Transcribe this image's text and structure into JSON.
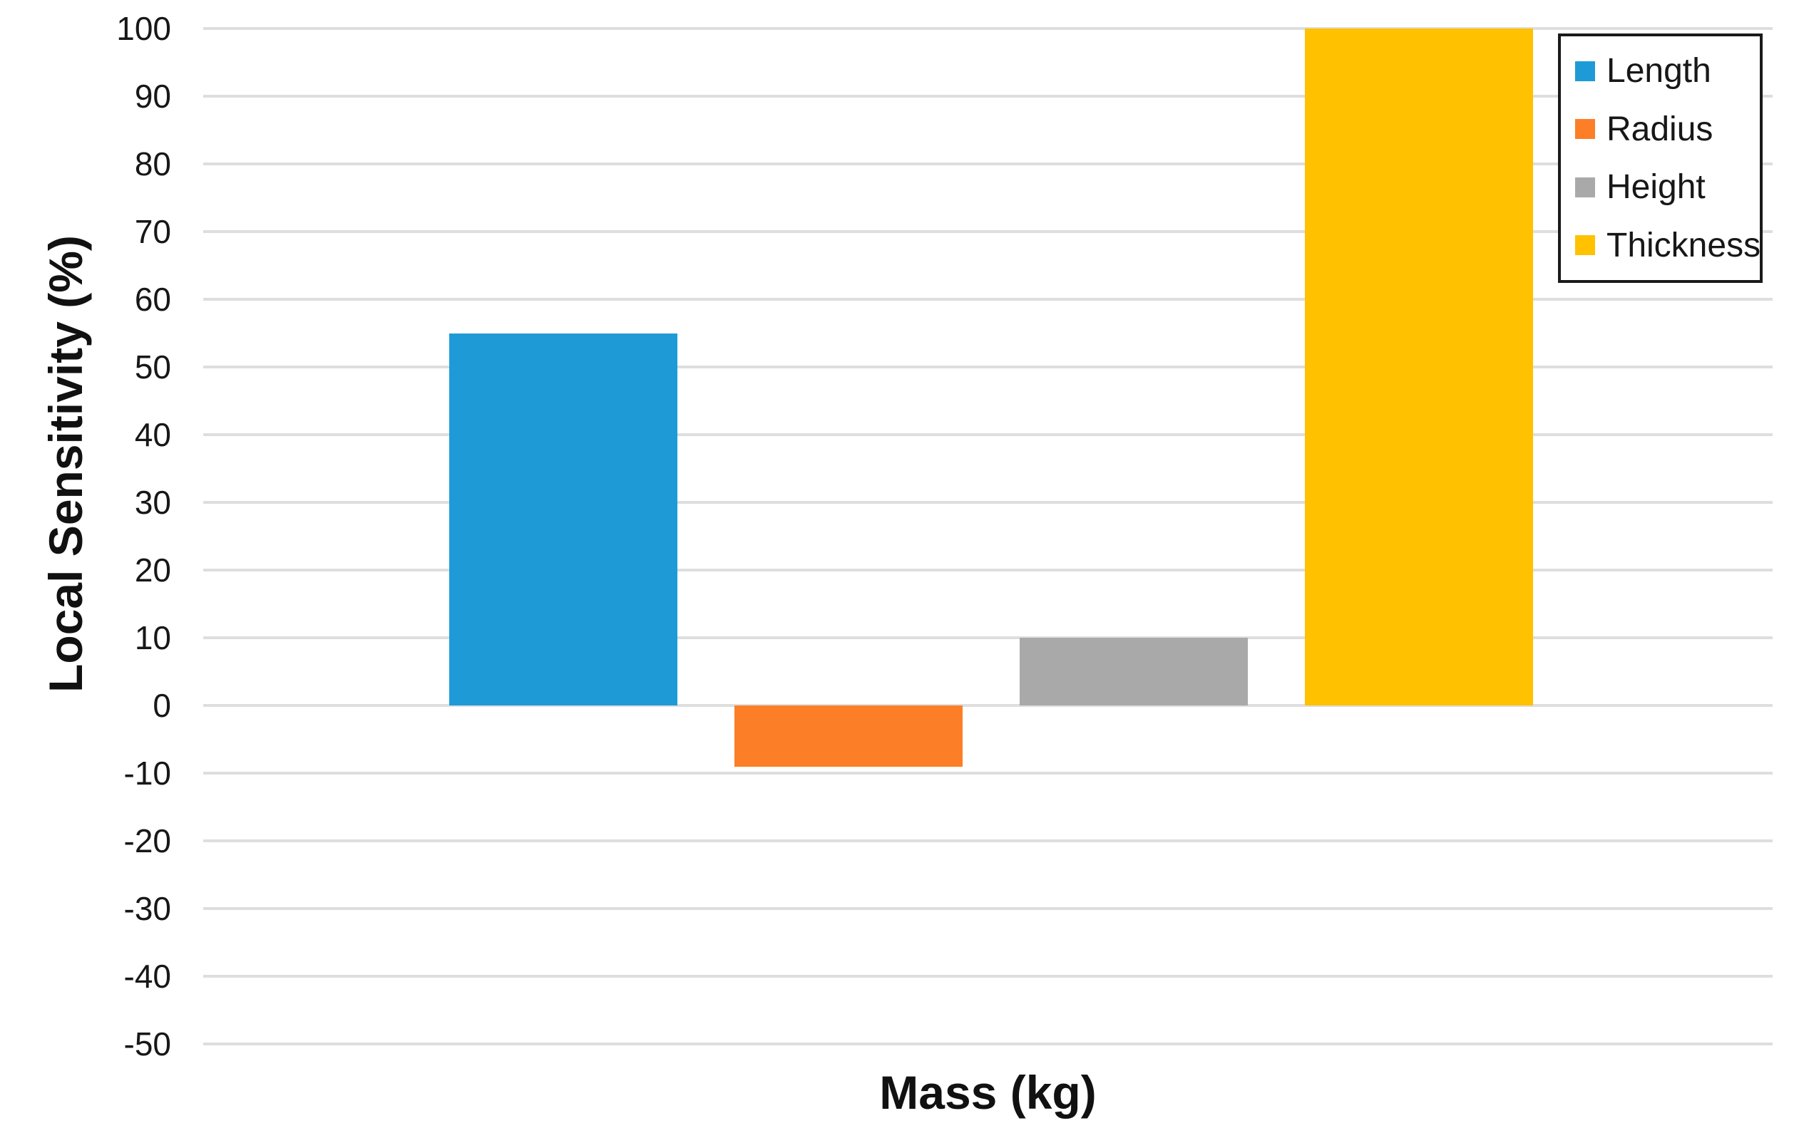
{
  "chart_data": {
    "type": "bar",
    "title": "",
    "xlabel": "Mass (kg)",
    "ylabel": "Local Sensitivity (%)",
    "categories": [
      "Length",
      "Radius",
      "Height",
      "Thickness"
    ],
    "values": [
      55,
      -9,
      10,
      100
    ],
    "colors": [
      "#1E9BD7",
      "#FC7E26",
      "#A9A9A9",
      "#FFC100"
    ],
    "ylim": [
      -50,
      100
    ],
    "yticks": [
      100,
      90,
      80,
      70,
      60,
      50,
      40,
      30,
      20,
      10,
      0,
      -10,
      -20,
      -30,
      -40,
      -50
    ],
    "grid": "horizontal",
    "gridline_color": "#dedede",
    "background_color": "#ffffff",
    "legend_position": "top-right",
    "legend": [
      {
        "label": "Length",
        "color": "#1E9BD7"
      },
      {
        "label": "Radius",
        "color": "#FC7E26"
      },
      {
        "label": "Height",
        "color": "#A9A9A9"
      },
      {
        "label": "Thickness",
        "color": "#FFC100"
      }
    ]
  }
}
